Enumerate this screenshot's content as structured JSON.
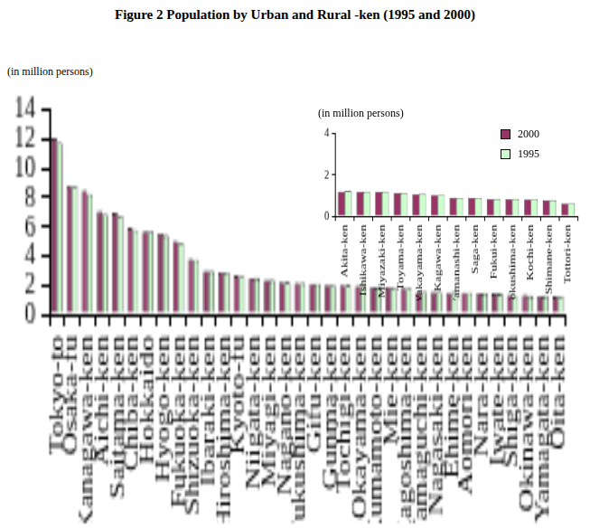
{
  "chart_data": [
    {
      "type": "bar",
      "title": "Figure 2  Population by Urban and Rural -ken (1995 and 2000)",
      "y_label": "(in million persons)",
      "categories": [
        "Tokyo-to",
        "Osaka-fu",
        "Kanagawa-ken",
        "Aichi-ken",
        "Saitama-ken",
        "Chiba-ken",
        "Hokkaido",
        "Hyogo-ken",
        "Fukuoka-ken",
        "Shizuoka-ken",
        "Ibaraki-ken",
        "Hiroshima-ken",
        "Kyoto-fu",
        "Niigata-ken",
        "Miyagi-ken",
        "Nagano-ken",
        "Fukushima-ken",
        "Gifu-ken",
        "Gunma-ken",
        "Tochigi-ken",
        "Okayama-ken",
        "Kumamoto-ken",
        "Mie-ken",
        "Kagoshima-ken",
        "Yamaguchi-ken",
        "Nagasaki-ken",
        "Ehime-ken",
        "Aomori-ken",
        "Nara-ken",
        "Iwate-ken",
        "Shiga-ken",
        "Okinawa-ken",
        "Yamagata-ken",
        "Oita-ken"
      ],
      "series": [
        {
          "name": "2000",
          "color": "#993366",
          "values": [
            12.06,
            8.81,
            8.49,
            7.04,
            6.94,
            5.93,
            5.68,
            5.55,
            5.02,
            3.77,
            2.99,
            2.88,
            2.64,
            2.48,
            2.37,
            2.21,
            2.13,
            2.11,
            2.02,
            2.0,
            1.95,
            1.86,
            1.86,
            1.79,
            1.53,
            1.52,
            1.49,
            1.48,
            1.44,
            1.42,
            1.34,
            1.32,
            1.24,
            1.22
          ]
        },
        {
          "name": "1995",
          "color": "#ccffcc",
          "values": [
            11.77,
            8.8,
            8.25,
            6.87,
            6.76,
            5.8,
            5.69,
            5.4,
            4.93,
            3.74,
            2.96,
            2.88,
            2.63,
            2.49,
            2.33,
            2.19,
            2.13,
            2.1,
            2.0,
            1.98,
            1.95,
            1.86,
            1.84,
            1.79,
            1.56,
            1.54,
            1.51,
            1.48,
            1.43,
            1.42,
            1.29,
            1.27,
            1.26,
            1.23
          ]
        }
      ],
      "ylim": [
        0,
        14
      ],
      "yticks": [
        0,
        2,
        4,
        6,
        8,
        10,
        12,
        14
      ],
      "grid": false
    },
    {
      "type": "bar",
      "y_label": "(in million persons)",
      "categories": [
        "Akita-ken",
        "Ishikawa-ken",
        "Miyazaki-ken",
        "Toyama-ken",
        "Wakayama-ken",
        "Kagawa-ken",
        "Yamanashi-ken",
        "Saga-ken",
        "Fukui-ken",
        "Tokushima-ken",
        "Kochi-ken",
        "Shimane-ken",
        "Tottori-ken"
      ],
      "series": [
        {
          "name": "2000",
          "color": "#993366",
          "values": [
            1.19,
            1.18,
            1.17,
            1.12,
            1.07,
            1.02,
            0.89,
            0.88,
            0.83,
            0.82,
            0.81,
            0.76,
            0.61
          ]
        },
        {
          "name": "1995",
          "color": "#ccffcc",
          "values": [
            1.21,
            1.18,
            1.18,
            1.12,
            1.08,
            1.03,
            0.88,
            0.88,
            0.83,
            0.83,
            0.82,
            0.77,
            0.61
          ]
        }
      ],
      "ylim": [
        0,
        4
      ],
      "yticks": [
        0,
        2,
        4
      ],
      "grid": false,
      "legend": "upper right"
    }
  ]
}
